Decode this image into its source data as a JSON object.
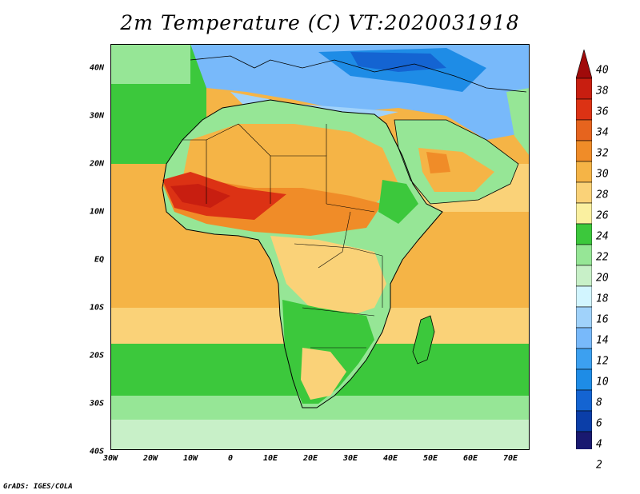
{
  "title": "2m Temperature (C) VT:2020031918",
  "credit": "GrADS: IGES/COLA",
  "lat_labels": [
    "40N",
    "30N",
    "20N",
    "10N",
    "EQ",
    "10S",
    "20S",
    "30S",
    "40S"
  ],
  "lon_labels": [
    "30W",
    "20W",
    "10W",
    "0",
    "10E",
    "20E",
    "30E",
    "40E",
    "50E",
    "60E",
    "70E"
  ],
  "colorbar": {
    "levels": [
      "2",
      "4",
      "6",
      "8",
      "10",
      "12",
      "14",
      "16",
      "18",
      "20",
      "22",
      "24",
      "26",
      "28",
      "30",
      "32",
      "34",
      "36",
      "38",
      "40"
    ],
    "colors": [
      "#e6e0f5",
      "#191970",
      "#0b3ea8",
      "#1464d2",
      "#1e8ce6",
      "#3ca0f0",
      "#78b9fa",
      "#a0d2fa",
      "#d2f5ff",
      "#c8f0c8",
      "#96e696",
      "#3cc83c",
      "#faf0a0",
      "#fad278",
      "#f5b446",
      "#f08c28",
      "#e6641e",
      "#dc3214",
      "#c81e10",
      "#a00a0a"
    ]
  },
  "map_colors": {
    "sea_warm": "#f5b446",
    "sea_mild": "#fad278",
    "sea_cool": "#3cc83c",
    "sea_cold": "#96e696",
    "sea_coldest": "#c8f0c8",
    "mediterranean": "#78b9fa",
    "land_hot": "#dc3214",
    "land_very_hot": "#c81e10",
    "land_warm": "#f08c28",
    "land_mild": "#f5b446",
    "land_green": "#3cc83c",
    "land_light_green": "#96e696",
    "europe_cold": "#1e8ce6",
    "border": "#000000"
  }
}
